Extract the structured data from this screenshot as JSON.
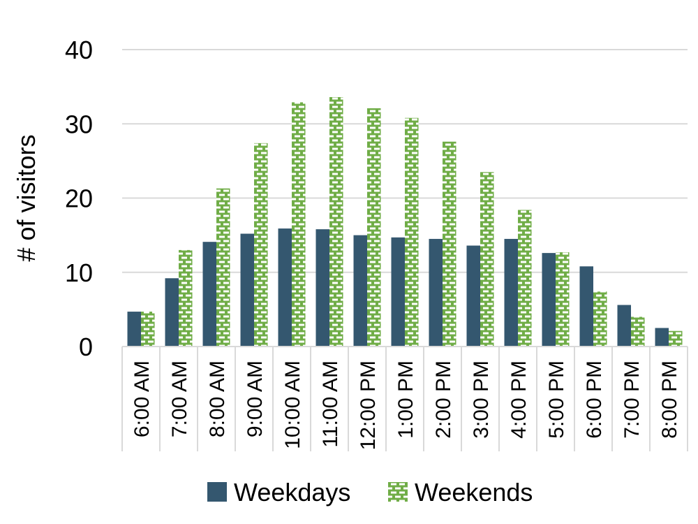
{
  "chart_data": {
    "type": "bar",
    "title": "",
    "xlabel": "",
    "ylabel": "# of visitors",
    "ylim": [
      0,
      40
    ],
    "yticks": [
      0,
      10,
      20,
      30,
      40
    ],
    "grid": true,
    "legend_position": "bottom",
    "categories": [
      "6:00 AM",
      "7:00 AM",
      "8:00 AM",
      "9:00 AM",
      "10:00 AM",
      "11:00 AM",
      "12:00 PM",
      "1:00 PM",
      "2:00 PM",
      "3:00 PM",
      "4:00 PM",
      "5:00 PM",
      "6:00 PM",
      "7:00 PM",
      "8:00 PM"
    ],
    "series": [
      {
        "name": "Weekdays",
        "color": "#34576f",
        "pattern": "solid",
        "values": [
          4.7,
          9.2,
          14.1,
          15.2,
          15.9,
          15.8,
          15.0,
          14.7,
          14.5,
          13.6,
          14.5,
          12.6,
          10.8,
          5.6,
          2.5
        ]
      },
      {
        "name": "Weekends",
        "color": "#70ad47",
        "pattern": "dashed-brick",
        "values": [
          4.7,
          13.0,
          21.3,
          27.4,
          32.9,
          33.6,
          32.1,
          30.8,
          27.6,
          23.5,
          18.4,
          12.7,
          7.4,
          4.0,
          2.1
        ]
      }
    ]
  }
}
